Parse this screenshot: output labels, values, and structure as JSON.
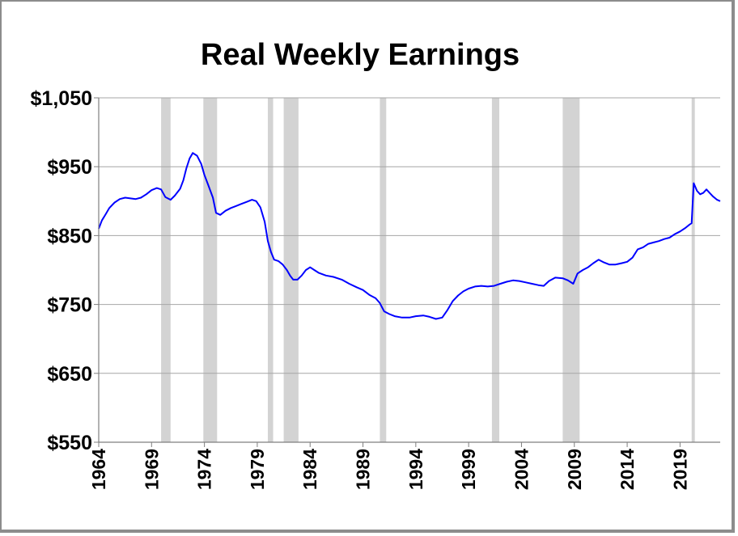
{
  "chart_data": {
    "type": "line",
    "title": "Real Weekly Earnings",
    "xlabel": "",
    "ylabel": "",
    "xlim": [
      1964.0,
      2022.8
    ],
    "ylim": [
      550,
      1050
    ],
    "grid": true,
    "legend": "none",
    "y_ticks": [
      {
        "value": 1050,
        "label": "$1,050"
      },
      {
        "value": 950,
        "label": "$950"
      },
      {
        "value": 850,
        "label": "$850"
      },
      {
        "value": 750,
        "label": "$750"
      },
      {
        "value": 650,
        "label": "$650"
      },
      {
        "value": 550,
        "label": "$550"
      }
    ],
    "x_ticks": [
      {
        "value": 1964,
        "label": "1964"
      },
      {
        "value": 1969,
        "label": "1969"
      },
      {
        "value": 1974,
        "label": "1974"
      },
      {
        "value": 1979,
        "label": "1979"
      },
      {
        "value": 1984,
        "label": "1984"
      },
      {
        "value": 1989,
        "label": "1989"
      },
      {
        "value": 1994,
        "label": "1994"
      },
      {
        "value": 1999,
        "label": "1999"
      },
      {
        "value": 2004,
        "label": "2004"
      },
      {
        "value": 2009,
        "label": "2009"
      },
      {
        "value": 2014,
        "label": "2014"
      },
      {
        "value": 2019,
        "label": "2019"
      }
    ],
    "recessions": [
      [
        1969.9,
        1970.8
      ],
      [
        1973.9,
        1975.2
      ],
      [
        1980.0,
        1980.5
      ],
      [
        1981.5,
        1982.9
      ],
      [
        1990.6,
        1991.2
      ],
      [
        2001.2,
        2001.9
      ],
      [
        2007.9,
        2009.5
      ],
      [
        2020.1,
        2020.4
      ]
    ],
    "colors": {
      "line": "#0000ff",
      "recession": "#d3d3d3",
      "grid": "#a6a6a6",
      "axis": "#7f7f7f"
    },
    "series": [
      {
        "values": [
          [
            1964.0,
            860
          ],
          [
            1964.3,
            872
          ],
          [
            1964.7,
            882
          ],
          [
            1965.0,
            890
          ],
          [
            1965.5,
            898
          ],
          [
            1966.0,
            903
          ],
          [
            1966.5,
            905
          ],
          [
            1967.0,
            904
          ],
          [
            1967.5,
            903
          ],
          [
            1968.0,
            905
          ],
          [
            1968.5,
            910
          ],
          [
            1969.0,
            916
          ],
          [
            1969.5,
            919
          ],
          [
            1969.9,
            917
          ],
          [
            1970.3,
            906
          ],
          [
            1970.8,
            902
          ],
          [
            1971.2,
            908
          ],
          [
            1971.7,
            918
          ],
          [
            1972.0,
            930
          ],
          [
            1972.3,
            948
          ],
          [
            1972.6,
            962
          ],
          [
            1972.9,
            970
          ],
          [
            1973.3,
            966
          ],
          [
            1973.7,
            954
          ],
          [
            1974.0,
            938
          ],
          [
            1974.4,
            922
          ],
          [
            1974.8,
            905
          ],
          [
            1975.1,
            883
          ],
          [
            1975.5,
            880
          ],
          [
            1976.0,
            886
          ],
          [
            1976.5,
            890
          ],
          [
            1977.0,
            893
          ],
          [
            1977.5,
            896
          ],
          [
            1978.0,
            899
          ],
          [
            1978.5,
            902
          ],
          [
            1978.9,
            900
          ],
          [
            1979.3,
            891
          ],
          [
            1979.7,
            870
          ],
          [
            1980.0,
            842
          ],
          [
            1980.3,
            826
          ],
          [
            1980.6,
            815
          ],
          [
            1981.0,
            813
          ],
          [
            1981.4,
            808
          ],
          [
            1981.8,
            800
          ],
          [
            1982.1,
            792
          ],
          [
            1982.4,
            786
          ],
          [
            1982.8,
            786
          ],
          [
            1983.2,
            792
          ],
          [
            1983.6,
            800
          ],
          [
            1984.0,
            804
          ],
          [
            1984.4,
            800
          ],
          [
            1984.8,
            796
          ],
          [
            1985.5,
            792
          ],
          [
            1986.2,
            790
          ],
          [
            1987.0,
            786
          ],
          [
            1987.7,
            780
          ],
          [
            1988.4,
            775
          ],
          [
            1989.0,
            771
          ],
          [
            1989.6,
            764
          ],
          [
            1990.2,
            759
          ],
          [
            1990.6,
            752
          ],
          [
            1991.0,
            740
          ],
          [
            1991.5,
            736
          ],
          [
            1992.0,
            733
          ],
          [
            1992.7,
            731
          ],
          [
            1993.4,
            731
          ],
          [
            1994.0,
            733
          ],
          [
            1994.7,
            734
          ],
          [
            1995.3,
            732
          ],
          [
            1995.9,
            729
          ],
          [
            1996.5,
            731
          ],
          [
            1997.0,
            742
          ],
          [
            1997.5,
            755
          ],
          [
            1998.0,
            763
          ],
          [
            1998.5,
            769
          ],
          [
            1999.0,
            773
          ],
          [
            1999.6,
            776
          ],
          [
            2000.2,
            777
          ],
          [
            2000.8,
            776
          ],
          [
            2001.4,
            777
          ],
          [
            2002.0,
            780
          ],
          [
            2002.6,
            783
          ],
          [
            2003.2,
            785
          ],
          [
            2003.8,
            784
          ],
          [
            2004.4,
            782
          ],
          [
            2005.0,
            780
          ],
          [
            2005.6,
            778
          ],
          [
            2006.1,
            777
          ],
          [
            2006.6,
            784
          ],
          [
            2007.2,
            789
          ],
          [
            2007.9,
            788
          ],
          [
            2008.4,
            785
          ],
          [
            2008.9,
            780
          ],
          [
            2009.3,
            795
          ],
          [
            2009.8,
            800
          ],
          [
            2010.3,
            804
          ],
          [
            2010.8,
            810
          ],
          [
            2011.3,
            815
          ],
          [
            2011.8,
            811
          ],
          [
            2012.3,
            808
          ],
          [
            2012.9,
            808
          ],
          [
            2013.5,
            810
          ],
          [
            2014.0,
            812
          ],
          [
            2014.5,
            818
          ],
          [
            2015.0,
            830
          ],
          [
            2015.5,
            833
          ],
          [
            2016.0,
            838
          ],
          [
            2016.5,
            840
          ],
          [
            2017.0,
            842
          ],
          [
            2017.5,
            845
          ],
          [
            2018.0,
            847
          ],
          [
            2018.5,
            852
          ],
          [
            2019.0,
            856
          ],
          [
            2019.5,
            861
          ],
          [
            2019.9,
            866
          ],
          [
            2020.1,
            868
          ],
          [
            2020.3,
            926
          ],
          [
            2020.6,
            915
          ],
          [
            2020.9,
            910
          ],
          [
            2021.2,
            912
          ],
          [
            2021.5,
            917
          ],
          [
            2021.8,
            912
          ],
          [
            2022.1,
            907
          ],
          [
            2022.5,
            902
          ],
          [
            2022.8,
            900
          ]
        ]
      }
    ]
  }
}
